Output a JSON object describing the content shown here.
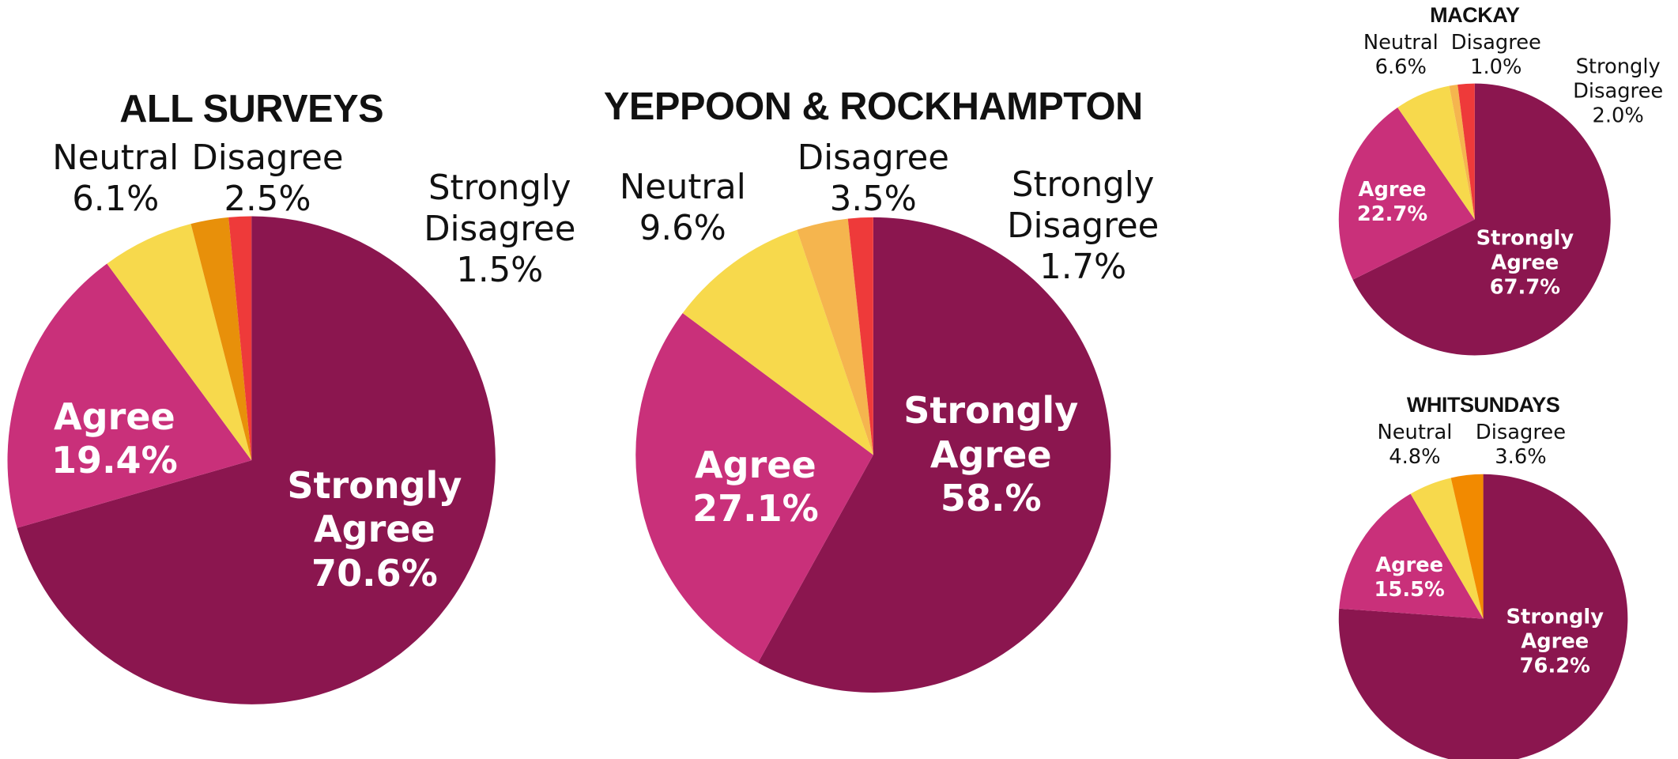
{
  "chart_data": [
    {
      "type": "pie",
      "title": "ALL SURVEYS",
      "categories": [
        "Strongly Agree",
        "Agree",
        "Neutral",
        "Disagree",
        "Strongly Disagree"
      ],
      "values": [
        70.6,
        19.4,
        6.1,
        2.5,
        1.5
      ],
      "value_labels": [
        "70.6%",
        "19.4%",
        "6.1%",
        "2.5%",
        "1.5%"
      ],
      "colors": [
        "#8b164f",
        "#c9307a",
        "#f7d94c",
        "#e8900a",
        "#ee3a3a"
      ]
    },
    {
      "type": "pie",
      "title": "YEPPOON & ROCKHAMPTON",
      "categories": [
        "Strongly Agree",
        "Agree",
        "Neutral",
        "Disagree",
        "Strongly Disagree"
      ],
      "values": [
        58.0,
        27.1,
        9.6,
        3.5,
        1.7
      ],
      "value_labels": [
        "58.%",
        "27.1%",
        "9.6%",
        "3.5%",
        "1.7%"
      ],
      "colors": [
        "#8b164f",
        "#c9307a",
        "#f7d94c",
        "#f5b54e",
        "#ee3a3a"
      ]
    },
    {
      "type": "pie",
      "title": "MACKAY",
      "categories": [
        "Strongly Agree",
        "Agree",
        "Neutral",
        "Disagree",
        "Strongly Disagree"
      ],
      "values": [
        67.7,
        22.7,
        6.6,
        1.0,
        2.0
      ],
      "value_labels": [
        "67.7%",
        "22.7%",
        "6.6%",
        "1.0%",
        "2.0%"
      ],
      "colors": [
        "#8b164f",
        "#c9307a",
        "#f7d94c",
        "#f5b54e",
        "#ee3a3a"
      ]
    },
    {
      "type": "pie",
      "title": "WHITSUNDAYS",
      "categories": [
        "Strongly Agree",
        "Agree",
        "Neutral",
        "Disagree"
      ],
      "values": [
        76.2,
        15.5,
        4.8,
        3.6
      ],
      "value_labels": [
        "76.2%",
        "15.5%",
        "4.8%",
        "3.6%"
      ],
      "colors": [
        "#8b164f",
        "#c9307a",
        "#f7d94c",
        "#f28a00"
      ]
    }
  ]
}
